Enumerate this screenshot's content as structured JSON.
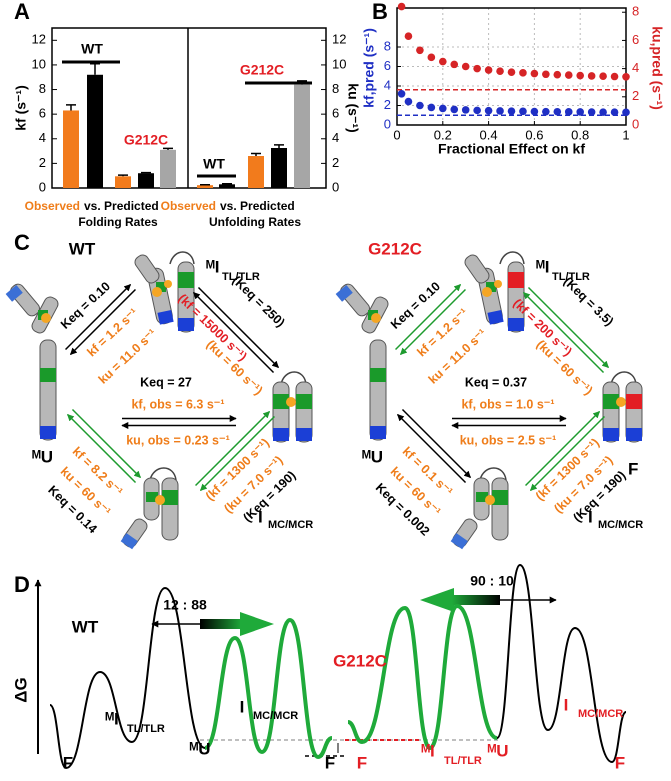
{
  "chart_data": [
    {
      "type": "bar",
      "label": "A",
      "ylabel": "kf (s⁻¹)",
      "y2label": "ku (s⁻¹)",
      "ylim": [
        0,
        13
      ],
      "yticks": [
        0,
        2,
        4,
        6,
        8,
        10,
        12
      ],
      "y2lim": [
        0,
        13
      ],
      "y2ticks": [
        0,
        2,
        4,
        6,
        8,
        10,
        12
      ],
      "colors": [
        "#f27b1c",
        "#000000",
        "#a6a6a6"
      ],
      "groups": [
        {
          "name": "WT",
          "axis": "y",
          "values": [
            6.3,
            9.2
          ],
          "errors": [
            0.45,
            0.9
          ]
        },
        {
          "name": "G212C",
          "axis": "y",
          "values": [
            0.95,
            1.2,
            3.1
          ],
          "errors": [
            0.1,
            0.05,
            0.12
          ]
        },
        {
          "name": "WT",
          "axis": "y2",
          "values": [
            0.23,
            0.3
          ],
          "errors": [
            0.03,
            0.05
          ]
        },
        {
          "name": "G212C",
          "axis": "y2",
          "values": [
            2.6,
            3.25,
            8.4
          ],
          "errors": [
            0.2,
            0.25,
            0.3
          ]
        }
      ],
      "captions": [
        {
          "observed": "Observed",
          "vs": "vs. Predicted",
          "rates": "Folding Rates"
        },
        {
          "observed": "Observed",
          "vs": "vs. Predicted",
          "rates": "Unfolding Rates"
        }
      ]
    },
    {
      "type": "scatter",
      "label": "B",
      "xlabel": "Fractional Effect on kf",
      "ylabel": "kf,pred (s⁻¹)",
      "y2label": "ku,pred (s⁻¹)",
      "x": [
        0.02,
        0.05,
        0.1,
        0.15,
        0.2,
        0.25,
        0.3,
        0.35,
        0.4,
        0.45,
        0.5,
        0.55,
        0.6,
        0.65,
        0.7,
        0.75,
        0.8,
        0.85,
        0.9,
        0.95,
        1
      ],
      "xlim": [
        0,
        1
      ],
      "xticks": [
        0,
        0.2,
        0.4,
        0.6,
        0.8,
        1
      ],
      "ylim": [
        0,
        12
      ],
      "yticks": [
        0,
        2,
        4,
        6,
        8
      ],
      "y2lim": [
        0,
        8.3
      ],
      "y2ticks": [
        0,
        2,
        4,
        6,
        8
      ],
      "grid": true,
      "series": [
        {
          "color": "#1f2fc4",
          "axis": "y",
          "values": [
            3.2,
            2.4,
            2.0,
            1.8,
            1.7,
            1.6,
            1.55,
            1.5,
            1.47,
            1.44,
            1.42,
            1.4,
            1.38,
            1.37,
            1.36,
            1.35,
            1.34,
            1.33,
            1.32,
            1.31,
            1.3
          ]
        },
        {
          "color": "#d62426",
          "axis": "y2",
          "values": [
            8.4,
            6.3,
            5.3,
            4.8,
            4.5,
            4.3,
            4.15,
            4.0,
            3.9,
            3.82,
            3.75,
            3.7,
            3.65,
            3.6,
            3.57,
            3.54,
            3.51,
            3.48,
            3.46,
            3.44,
            3.42
          ]
        }
      ],
      "reference_lines": [
        {
          "value": 1.0,
          "axis": "y",
          "color": "#1f2fc4"
        },
        {
          "value": 2.5,
          "axis": "y2",
          "color": "#d62426"
        }
      ]
    }
  ],
  "panel_c": {
    "label": "C",
    "diagrams": [
      {
        "title": "WT",
        "states": {
          "top": {
            "name": "ᴹI",
            "sub": "TL/TLR"
          },
          "left": {
            "name": "ᴹU"
          },
          "bottom": {
            "name": "I",
            "sub": "MC/MCR"
          }
        },
        "edges": {
          "upper_left": {
            "keq": "Keq = 0.10",
            "kf": "kf = 1.2 s⁻¹",
            "ku": "ku = 11.0 s⁻¹"
          },
          "upper_right": {
            "keq": "(Keq = 250)",
            "kf": "(kf = 15000 s⁻¹)",
            "ku": "(ku = 60 s⁻¹)"
          },
          "center": {
            "keq": "Keq = 27",
            "kf": "kf, obs = 6.3 s⁻¹",
            "ku": "ku, obs = 0.23 s⁻¹"
          },
          "lower_left": {
            "keq": "Keq = 0.14",
            "kf": "kf = 8.2 s⁻¹",
            "ku": "ku = 60 s⁻¹"
          },
          "lower_right": {
            "keq": "(Keq = 190)",
            "kf": "(kf = 1300 s⁻¹)",
            "ku": "(ku = 7.0 s⁻¹)"
          }
        }
      },
      {
        "title": "G212C",
        "states": {
          "top": {
            "name": "ᴹI",
            "sub": "TL/TLR"
          },
          "left": {
            "name": "ᴹU"
          },
          "bottom": {
            "name": "I",
            "sub": "MC/MCR"
          },
          "right": {
            "name": "F"
          }
        },
        "edges": {
          "upper_left": {
            "keq": "Keq = 0.10",
            "kf": "kf = 1.2 s⁻¹",
            "ku": "ku = 11.0 s⁻¹"
          },
          "upper_right": {
            "keq": "(Keq = 3.5)",
            "kf": "(kf = 200 s⁻¹)",
            "ku": "(ku = 60 s⁻¹)"
          },
          "center": {
            "keq": "Keq = 0.37",
            "kf": "kf, obs = 1.0 s⁻¹",
            "ku": "ku, obs = 2.5 s⁻¹"
          },
          "lower_left": {
            "keq": "Keq = 0.002",
            "kf": "kf = 0.1 s⁻¹",
            "ku": "ku = 60 s⁻¹"
          },
          "lower_right": {
            "keq": "(Keq = 190)",
            "kf": "(kf = 1300 s⁻¹)",
            "ku": "(ku = 7.0 s⁻¹)"
          }
        }
      }
    ]
  },
  "panel_d": {
    "label": "D",
    "axis_label": "ΔG",
    "landscapes": [
      {
        "title": "WT",
        "ratio": "12 : 88",
        "states": [
          {
            "name": "F"
          },
          {
            "name": "ᴹI",
            "sub": "TL/TLR"
          },
          {
            "name": "ᴹU"
          },
          {
            "name": "I",
            "sub": "MC/MCR"
          },
          {
            "name": "F"
          }
        ]
      },
      {
        "title": "G212C",
        "ratio": "90 : 10",
        "states": [
          {
            "name": "F"
          },
          {
            "name": "ᴹI",
            "sub": "TL/TLR"
          },
          {
            "name": "ᴹU"
          },
          {
            "name": "I",
            "sub": "MC/MCR"
          },
          {
            "name": "F"
          }
        ]
      }
    ]
  }
}
